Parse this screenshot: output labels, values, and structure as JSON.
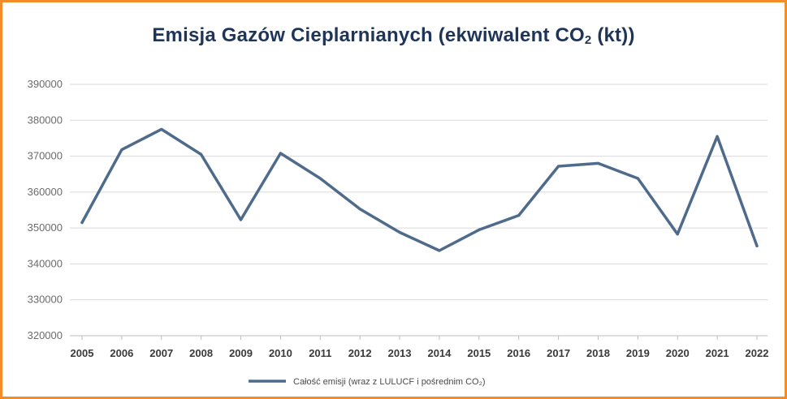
{
  "chart_data": {
    "type": "line",
    "title_prefix": "Emisja Gazów Cieplarnianych (ekwiwalent CO",
    "title_sub": "2",
    "title_suffix": " (kt))",
    "x": [
      "2005",
      "2006",
      "2007",
      "2008",
      "2009",
      "2010",
      "2011",
      "2012",
      "2013",
      "2014",
      "2015",
      "2016",
      "2017",
      "2018",
      "2019",
      "2020",
      "2021",
      "2022"
    ],
    "y_ticks": [
      "390000",
      "380000",
      "370000",
      "360000",
      "350000",
      "340000",
      "330000",
      "320000"
    ],
    "ylim": [
      320000,
      390000
    ],
    "grid": true,
    "legend_position": "bottom",
    "series": [
      {
        "name": "Całość emisji (wraz z LULUCF i pośrednim CO₂)",
        "color": "#4f6b8c",
        "values": [
          351500,
          371800,
          377500,
          370500,
          352300,
          370800,
          363800,
          355300,
          348800,
          343700,
          349500,
          353500,
          367200,
          368000,
          363800,
          348300,
          375500,
          345000
        ]
      }
    ]
  }
}
